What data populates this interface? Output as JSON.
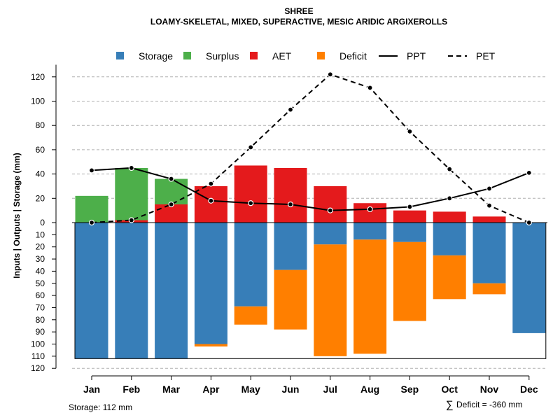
{
  "chart_data": {
    "type": "bar",
    "title": "SHREE",
    "subtitle": "LOAMY-SKELETAL, MIXED, SUPERACTIVE, MESIC ARIDIC ARGIXEROLLS",
    "ylabel": "Inputs | Outputs | Storage    (mm)",
    "categories": [
      "Jan",
      "Feb",
      "Mar",
      "Apr",
      "May",
      "Jun",
      "Jul",
      "Aug",
      "Sep",
      "Oct",
      "Nov",
      "Dec"
    ],
    "upper_axis": {
      "range": [
        0,
        130
      ],
      "ticks": [
        "0",
        "20",
        "40",
        "60",
        "80",
        "100",
        "120"
      ],
      "tick_values": [
        0,
        20,
        40,
        60,
        80,
        100,
        120
      ]
    },
    "lower_axis": {
      "range": [
        0,
        120
      ],
      "ticks": [
        "0",
        "10",
        "20",
        "30",
        "40",
        "50",
        "60",
        "70",
        "80",
        "90",
        "100",
        "110",
        "120"
      ],
      "tick_values": [
        0,
        10,
        20,
        30,
        40,
        50,
        60,
        70,
        80,
        90,
        100,
        110,
        120
      ]
    },
    "series": [
      {
        "name": "Storage",
        "color": "#377eb8",
        "values": [
          112,
          112,
          112,
          100,
          69,
          39,
          18,
          14,
          16,
          27,
          50,
          91
        ]
      },
      {
        "name": "Surplus",
        "color": "#4daf4a",
        "values": [
          22,
          43,
          21,
          0,
          0,
          0,
          0,
          0,
          0,
          0,
          0,
          0
        ]
      },
      {
        "name": "AET",
        "color": "#e41a1c",
        "values": [
          0,
          2,
          15,
          30,
          47,
          45,
          30,
          16,
          10,
          9,
          5,
          0
        ]
      },
      {
        "name": "Deficit",
        "color": "#ff7f00",
        "values": [
          0,
          0,
          0,
          2,
          15,
          49,
          92,
          94,
          65,
          36,
          9,
          0
        ]
      },
      {
        "name": "PPT",
        "color": "#000000",
        "style": "solid",
        "values": [
          43,
          45,
          36,
          18,
          16,
          15,
          10,
          11,
          13,
          20,
          28,
          41
        ]
      },
      {
        "name": "PET",
        "color": "#000000",
        "style": "dashed",
        "values": [
          0,
          2,
          15,
          32,
          62,
          93,
          122,
          111,
          75,
          44,
          14,
          0
        ]
      }
    ],
    "legend": [
      "Storage",
      "Surplus",
      "AET",
      "Deficit",
      "PPT",
      "PET"
    ],
    "legend_position": "top",
    "grid": true,
    "footer_left": "Storage: 112 mm",
    "footer_right_symbol": "∑",
    "footer_right": "Deficit = -360 mm"
  }
}
